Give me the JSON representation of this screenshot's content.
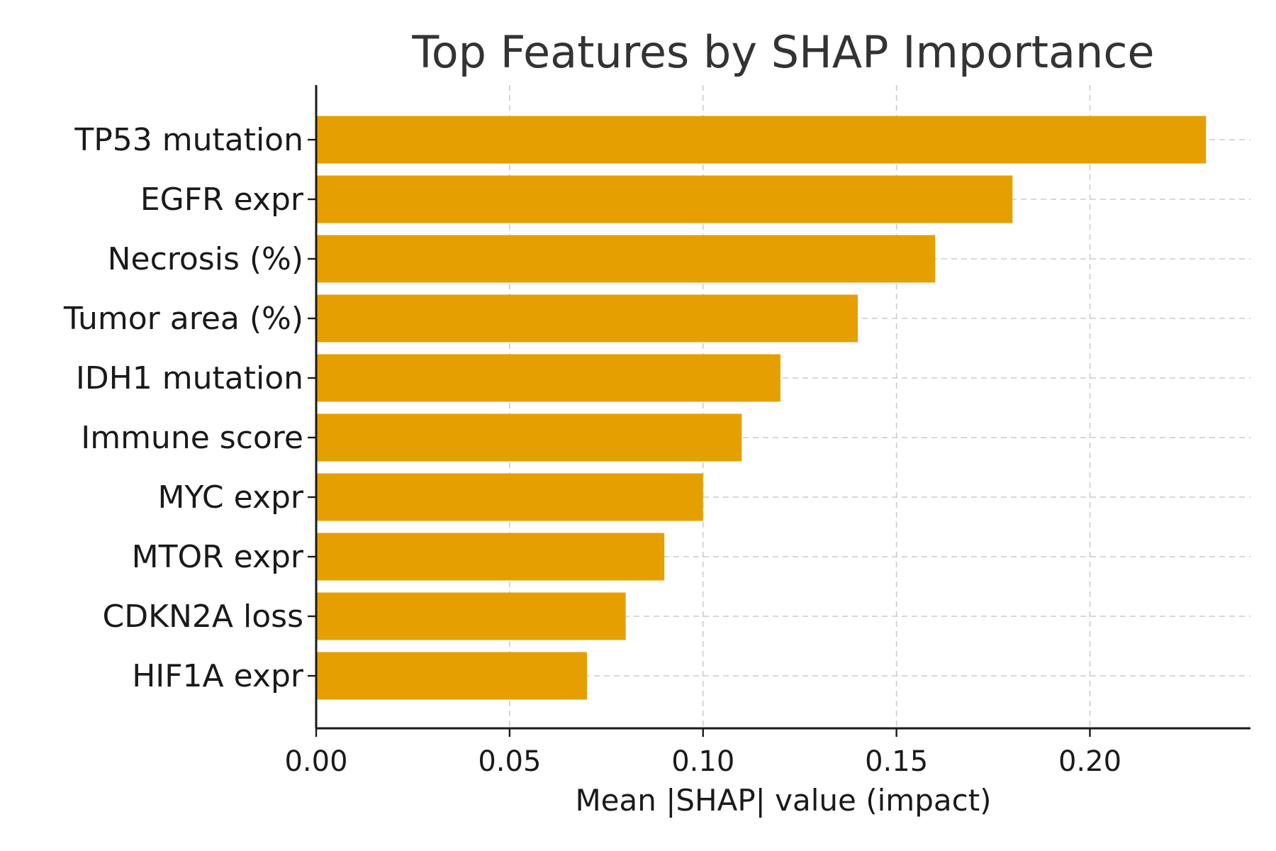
{
  "chart_data": {
    "type": "bar",
    "orientation": "horizontal",
    "title": "Top Features by SHAP Importance",
    "xlabel": "Mean |SHAP| value (impact)",
    "ylabel": "",
    "categories": [
      "TP53 mutation",
      "EGFR expr",
      "Necrosis (%)",
      "Tumor area (%)",
      "IDH1 mutation",
      "Immune score",
      "MYC expr",
      "MTOR expr",
      "CDKN2A loss",
      "HIF1A expr"
    ],
    "values": [
      0.23,
      0.18,
      0.16,
      0.14,
      0.12,
      0.11,
      0.1,
      0.09,
      0.08,
      0.07
    ],
    "xlim": [
      0,
      0.2415
    ],
    "xticks": [
      0.0,
      0.05,
      0.1,
      0.15,
      0.2
    ],
    "xtick_labels": [
      "0.00",
      "0.05",
      "0.10",
      "0.15",
      "0.20"
    ],
    "grid": true,
    "bar_color": "#E69F00"
  }
}
